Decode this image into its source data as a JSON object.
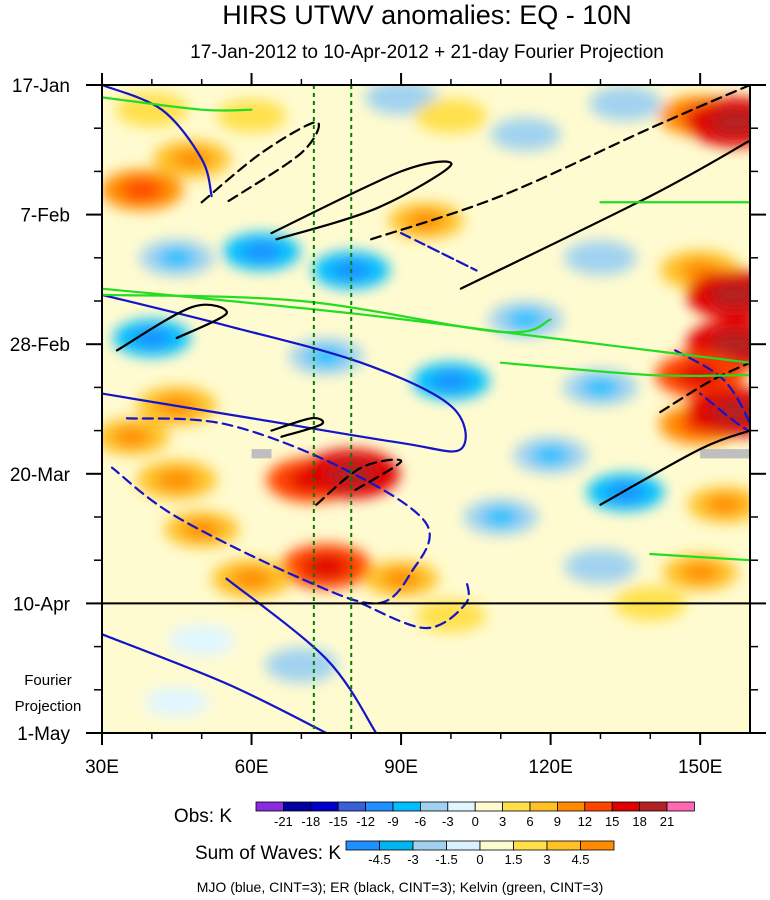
{
  "chart_data": {
    "type": "heatmap",
    "title": "HIRS UTWV anomalies: EQ - 10N",
    "subtitle": "17-Jan-2012 to 10-Apr-2012 + 21-day Fourier Projection",
    "x_axis": {
      "range": [
        30,
        160
      ],
      "units": "degrees longitude east",
      "ticks": [
        30,
        60,
        90,
        120,
        150
      ],
      "tick_labels": [
        "30E",
        "60E",
        "90E",
        "120E",
        "150E"
      ]
    },
    "y_axis": {
      "range_days": [
        0,
        105
      ],
      "reversed": true,
      "ticks_days": [
        0,
        21,
        42,
        63,
        84,
        105
      ],
      "tick_labels": [
        "17-Jan",
        "7-Feb",
        "28-Feb",
        "20-Mar",
        "10-Apr",
        "1-May"
      ]
    },
    "forecast_boundary_day": 84,
    "forecast_label": [
      "Fourier",
      "Projection"
    ],
    "reference_lines_lon": [
      72.5,
      80
    ],
    "obs_colorbar": {
      "label": "Obs: K",
      "levels": [
        -21,
        -18,
        -15,
        -12,
        -9,
        -6,
        -3,
        0,
        3,
        6,
        9,
        12,
        15,
        18,
        21
      ],
      "level_labels": [
        "-21",
        "-18",
        "-15",
        "-12",
        "-9",
        "-6",
        "-3",
        "0",
        "3",
        "6",
        "9",
        "12",
        "15",
        "18",
        "21"
      ],
      "colors": [
        "#8a2be2",
        "#0000a0",
        "#0000cd",
        "#3a5fd9",
        "#1e90ff",
        "#00bfff",
        "#a0d2f0",
        "#e0f6ff",
        "#fffbd0",
        "#ffe04b",
        "#ffc125",
        "#ff8c00",
        "#ff4500",
        "#e00000",
        "#b22222",
        "#ff69b4"
      ]
    },
    "waves_colorbar": {
      "label": "Sum of Waves: K",
      "levels": [
        -4.5,
        -3,
        -1.5,
        0,
        1.5,
        3,
        4.5
      ],
      "level_labels": [
        "-4.5",
        "-3",
        "-1.5",
        "0",
        "1.5",
        "3",
        "4.5"
      ],
      "colors": [
        "#1e90ff",
        "#00b4f0",
        "#a0d2f0",
        "#d8f0ff",
        "#fffbd0",
        "#ffe04b",
        "#ffc125",
        "#ff8c00"
      ]
    },
    "obs_anomaly_blobs": [
      {
        "lon": 38,
        "day": 17,
        "value": 9
      },
      {
        "lon": 48,
        "day": 12,
        "value": 7
      },
      {
        "lon": 40,
        "day": 4,
        "value": 5
      },
      {
        "lon": 60,
        "day": 5,
        "value": 4
      },
      {
        "lon": 90,
        "day": 2,
        "value": -5
      },
      {
        "lon": 100,
        "day": 5,
        "value": 5
      },
      {
        "lon": 115,
        "day": 8,
        "value": -4
      },
      {
        "lon": 135,
        "day": 3,
        "value": -5
      },
      {
        "lon": 150,
        "day": 5,
        "value": 9
      },
      {
        "lon": 157,
        "day": 6,
        "value": 15
      },
      {
        "lon": 95,
        "day": 22,
        "value": 6
      },
      {
        "lon": 62,
        "day": 27,
        "value": -7
      },
      {
        "lon": 45,
        "day": 28,
        "value": -6
      },
      {
        "lon": 80,
        "day": 30,
        "value": -7
      },
      {
        "lon": 130,
        "day": 28,
        "value": -5
      },
      {
        "lon": 150,
        "day": 30,
        "value": 8
      },
      {
        "lon": 157,
        "day": 34,
        "value": 15
      },
      {
        "lon": 115,
        "day": 38,
        "value": -6
      },
      {
        "lon": 40,
        "day": 41,
        "value": -7
      },
      {
        "lon": 75,
        "day": 44,
        "value": -6
      },
      {
        "lon": 157,
        "day": 42,
        "value": 15
      },
      {
        "lon": 150,
        "day": 47,
        "value": 12
      },
      {
        "lon": 100,
        "day": 48,
        "value": -7
      },
      {
        "lon": 130,
        "day": 49,
        "value": -6
      },
      {
        "lon": 45,
        "day": 52,
        "value": 8
      },
      {
        "lon": 36,
        "day": 57,
        "value": 6
      },
      {
        "lon": 150,
        "day": 55,
        "value": 9
      },
      {
        "lon": 157,
        "day": 53,
        "value": 15
      },
      {
        "lon": 120,
        "day": 60,
        "value": -6
      },
      {
        "lon": 72,
        "day": 64,
        "value": 12
      },
      {
        "lon": 80,
        "day": 63,
        "value": 15
      },
      {
        "lon": 45,
        "day": 64,
        "value": 8
      },
      {
        "lon": 50,
        "day": 72,
        "value": 6
      },
      {
        "lon": 135,
        "day": 66,
        "value": -7
      },
      {
        "lon": 110,
        "day": 70,
        "value": -6
      },
      {
        "lon": 155,
        "day": 68,
        "value": 6
      },
      {
        "lon": 75,
        "day": 78,
        "value": 12
      },
      {
        "lon": 60,
        "day": 80,
        "value": 8
      },
      {
        "lon": 90,
        "day": 80,
        "value": 6
      },
      {
        "lon": 130,
        "day": 78,
        "value": -5
      },
      {
        "lon": 150,
        "day": 79,
        "value": 6
      },
      {
        "lon": 140,
        "day": 84,
        "value": 5
      },
      {
        "lon": 100,
        "day": 86,
        "value": 4
      },
      {
        "lon": 50,
        "day": 90,
        "value": -3
      },
      {
        "lon": 70,
        "day": 94,
        "value": -5
      },
      {
        "lon": 45,
        "day": 100,
        "value": -2
      },
      {
        "lon": 105,
        "day": 95,
        "value": 2
      },
      {
        "lon": 150,
        "day": 97,
        "value": 2
      },
      {
        "lon": 125,
        "day": 100,
        "value": 1.5
      }
    ],
    "contours": [
      {
        "type": "mjo",
        "sign": "positive",
        "label": "MJO",
        "points": [
          [
            30,
            0
          ],
          [
            42,
            4
          ],
          [
            50,
            12
          ],
          [
            52,
            18
          ]
        ]
      },
      {
        "type": "mjo",
        "sign": "positive",
        "label": "MJO",
        "points": [
          [
            30,
            34
          ],
          [
            55,
            39
          ],
          [
            82,
            45
          ],
          [
            100,
            52
          ],
          [
            102,
            59
          ],
          [
            90,
            58
          ],
          [
            60,
            54
          ],
          [
            30,
            50
          ]
        ]
      },
      {
        "type": "mjo",
        "sign": "positive",
        "label": "MJO",
        "points": [
          [
            30,
            89
          ],
          [
            55,
            97
          ],
          [
            75,
            105
          ]
        ]
      },
      {
        "type": "mjo",
        "sign": "positive",
        "label": "MJO",
        "points": [
          [
            55,
            80
          ],
          [
            75,
            93
          ],
          [
            85,
            105
          ]
        ]
      },
      {
        "type": "mjo",
        "sign": "negative",
        "label": "MJO",
        "points": [
          [
            35,
            54
          ],
          [
            55,
            55
          ],
          [
            78,
            62
          ],
          [
            95,
            71
          ],
          [
            92,
            79
          ],
          [
            85,
            84
          ],
          [
            70,
            80
          ],
          [
            45,
            70
          ],
          [
            32,
            62
          ]
        ]
      },
      {
        "type": "mjo",
        "sign": "negative",
        "label": "MJO",
        "points": [
          [
            82,
            84
          ],
          [
            95,
            88
          ],
          [
            103,
            84
          ],
          [
            103,
            80
          ]
        ]
      },
      {
        "type": "mjo",
        "sign": "negative",
        "label": "MJO",
        "points": [
          [
            90,
            24
          ],
          [
            100,
            28
          ],
          [
            105,
            30
          ],
          [
            95,
            26
          ]
        ]
      },
      {
        "type": "mjo",
        "sign": "negative",
        "label": "MJO",
        "points": [
          [
            145,
            43
          ],
          [
            155,
            48
          ],
          [
            160,
            56
          ],
          [
            150,
            50
          ]
        ]
      },
      {
        "type": "er",
        "sign": "positive",
        "label": "ER",
        "points": [
          [
            33,
            43
          ],
          [
            48,
            36
          ],
          [
            55,
            37
          ],
          [
            45,
            41
          ]
        ]
      },
      {
        "type": "er",
        "sign": "positive",
        "label": "ER",
        "points": [
          [
            64,
            24
          ],
          [
            90,
            14
          ],
          [
            100,
            13
          ],
          [
            85,
            20
          ],
          [
            65,
            25
          ]
        ]
      },
      {
        "type": "er",
        "sign": "positive",
        "label": "ER",
        "points": [
          [
            102,
            33
          ],
          [
            140,
            18
          ],
          [
            160,
            9
          ]
        ]
      },
      {
        "type": "er",
        "sign": "positive",
        "label": "ER",
        "points": [
          [
            64,
            56
          ],
          [
            72,
            54
          ],
          [
            74,
            55
          ],
          [
            66,
            57
          ]
        ]
      },
      {
        "type": "er",
        "sign": "positive",
        "label": "ER",
        "points": [
          [
            130,
            68
          ],
          [
            150,
            59
          ],
          [
            160,
            56
          ]
        ]
      },
      {
        "type": "er",
        "sign": "negative",
        "label": "ER",
        "points": [
          [
            50,
            19
          ],
          [
            62,
            11
          ],
          [
            73,
            6
          ],
          [
            70,
            11
          ],
          [
            55,
            19
          ]
        ]
      },
      {
        "type": "er",
        "sign": "negative",
        "label": "ER",
        "points": [
          [
            84,
            25
          ],
          [
            110,
            18
          ],
          [
            140,
            7
          ],
          [
            160,
            0
          ]
        ]
      },
      {
        "type": "er",
        "sign": "negative",
        "label": "ER",
        "points": [
          [
            73,
            68
          ],
          [
            82,
            62
          ],
          [
            90,
            61
          ],
          [
            80,
            66
          ]
        ]
      },
      {
        "type": "er",
        "sign": "negative",
        "label": "ER",
        "points": [
          [
            142,
            53
          ],
          [
            152,
            48
          ],
          [
            160,
            45
          ]
        ]
      },
      {
        "type": "kelvin",
        "sign": "positive",
        "label": "Kelvin",
        "points": [
          [
            30,
            34
          ],
          [
            70,
            35
          ],
          [
            110,
            40
          ],
          [
            120,
            38
          ]
        ]
      },
      {
        "type": "kelvin",
        "sign": "positive",
        "label": "Kelvin",
        "points": [
          [
            30,
            33
          ],
          [
            80,
            37
          ],
          [
            120,
            41
          ],
          [
            160,
            45
          ]
        ]
      },
      {
        "type": "kelvin",
        "sign": "positive",
        "label": "Kelvin",
        "points": [
          [
            110,
            45
          ],
          [
            140,
            47
          ],
          [
            160,
            47
          ]
        ]
      },
      {
        "type": "kelvin",
        "sign": "positive",
        "label": "Kelvin",
        "points": [
          [
            30,
            2
          ],
          [
            50,
            4
          ],
          [
            60,
            4
          ]
        ]
      },
      {
        "type": "kelvin",
        "sign": "positive",
        "label": "Kelvin",
        "points": [
          [
            130,
            19
          ],
          [
            160,
            19
          ]
        ]
      },
      {
        "type": "kelvin",
        "sign": "positive",
        "label": "Kelvin",
        "points": [
          [
            140,
            76
          ],
          [
            160,
            77
          ]
        ]
      }
    ],
    "missing_data_patches": [
      {
        "lon": [
          60,
          64
        ],
        "day": [
          59,
          60.5
        ]
      },
      {
        "lon": [
          150,
          160
        ],
        "day": [
          59,
          60.5
        ]
      }
    ],
    "footer": "MJO (blue, CINT=3); ER (black, CINT=3); Kelvin (green, CINT=3)",
    "style": {
      "mjo_color": "#1414c8",
      "er_color": "#000000",
      "kelvin_color": "#22dd22",
      "ref_line_color": "#008000",
      "missing_color": "#bfbfbf",
      "background": "#fffbd0"
    }
  }
}
